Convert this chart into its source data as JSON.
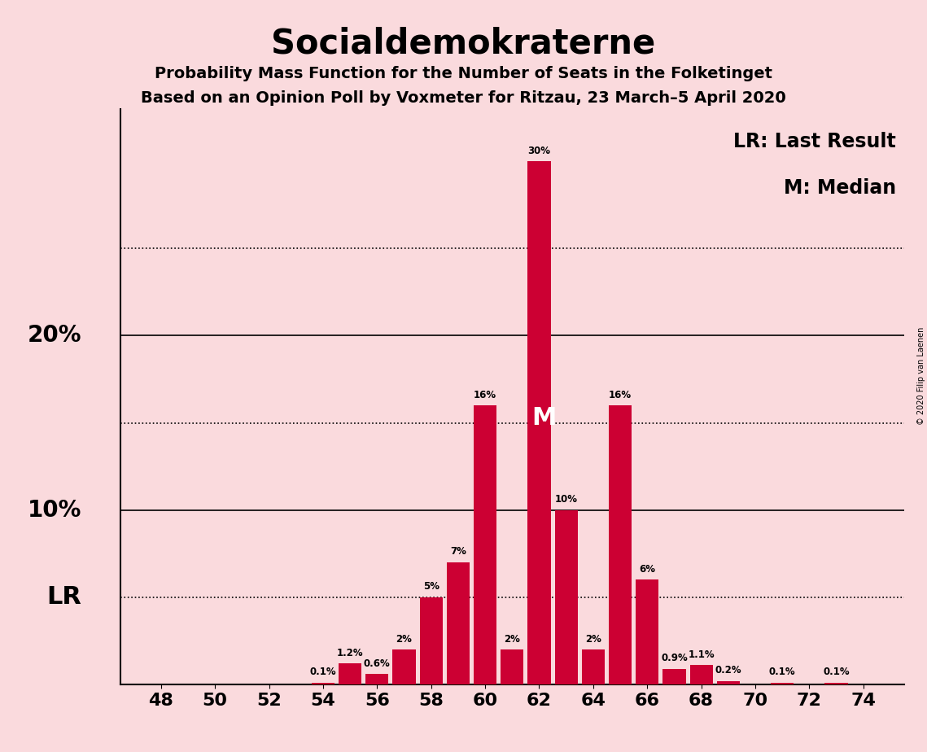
{
  "title": "Socialdemokraterne",
  "subtitle1": "Probability Mass Function for the Number of Seats in the Folketinget",
  "subtitle2": "Based on an Opinion Poll by Voxmeter for Ritzau, 23 March–5 April 2020",
  "copyright": "© 2020 Filip van Laenen",
  "seats": [
    48,
    49,
    50,
    51,
    52,
    53,
    54,
    55,
    56,
    57,
    58,
    59,
    60,
    61,
    62,
    63,
    64,
    65,
    66,
    67,
    68,
    69,
    70,
    71,
    72,
    73,
    74
  ],
  "probabilities": [
    0.0,
    0.0,
    0.0,
    0.0,
    0.0,
    0.0,
    0.1,
    1.2,
    0.6,
    2.0,
    5.0,
    7.0,
    16.0,
    2.0,
    30.0,
    10.0,
    2.0,
    16.0,
    6.0,
    0.9,
    1.1,
    0.2,
    0.0,
    0.1,
    0.0,
    0.1,
    0.0
  ],
  "bar_color": "#cc0033",
  "background_color": "#fadadd",
  "last_result_seat": 48,
  "median_seat": 62,
  "lr_label": "LR",
  "median_label": "M",
  "legend_lr": "LR: Last Result",
  "legend_m": "M: Median",
  "dotted_lines": [
    5,
    15,
    25
  ],
  "solid_lines": [
    10,
    20
  ],
  "lr_line_y": 5,
  "xlim": [
    46.5,
    75.5
  ],
  "ylim": [
    0,
    33
  ],
  "bar_width": 0.85
}
